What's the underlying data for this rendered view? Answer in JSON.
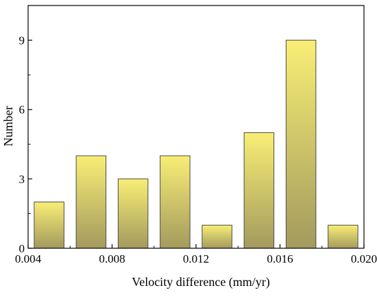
{
  "chart_data": {
    "type": "bar",
    "title": "",
    "xlabel": "Velocity difference (mm/yr)",
    "ylabel": "Number",
    "xlim": [
      0.004,
      0.02
    ],
    "ylim": [
      0,
      10.5
    ],
    "x_ticks": [
      0.004,
      0.008,
      0.012,
      0.016,
      0.02
    ],
    "x_tick_labels": [
      "0.004",
      "0.008",
      "0.012",
      "0.016",
      "0.020"
    ],
    "y_ticks": [
      0,
      3,
      6,
      9
    ],
    "y_tick_labels": [
      "0",
      "3",
      "6",
      "9"
    ],
    "bin_width": 0.002,
    "bins": [
      {
        "x_start": 0.004,
        "x_end": 0.006,
        "value": 2
      },
      {
        "x_start": 0.006,
        "x_end": 0.008,
        "value": 4
      },
      {
        "x_start": 0.008,
        "x_end": 0.01,
        "value": 3
      },
      {
        "x_start": 0.01,
        "x_end": 0.012,
        "value": 4
      },
      {
        "x_start": 0.012,
        "x_end": 0.014,
        "value": 1
      },
      {
        "x_start": 0.014,
        "x_end": 0.016,
        "value": 5
      },
      {
        "x_start": 0.016,
        "x_end": 0.018,
        "value": 9
      },
      {
        "x_start": 0.018,
        "x_end": 0.02,
        "value": 1
      }
    ],
    "grid": false,
    "legend": "none",
    "colors": {
      "bar_top": "#f8ee75",
      "bar_bottom": "#a39a5e",
      "bar_edge": "#4a4a4a",
      "axis": "#000000"
    }
  }
}
